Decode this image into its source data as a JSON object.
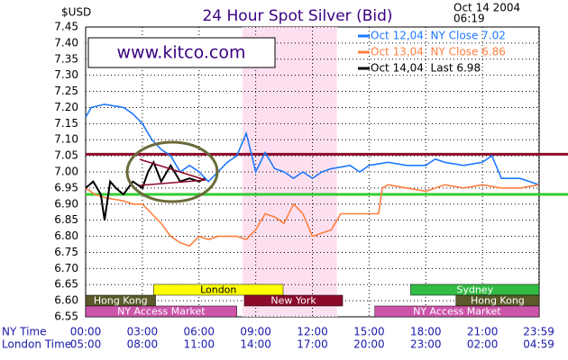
{
  "chart_data": {
    "type": "line",
    "title": "24 Hour Spot Silver (Bid)",
    "y_unit": "$USD",
    "date": "Oct 14 2004",
    "time": "06:19",
    "watermark": "www.kitco.com",
    "x_row_labels": [
      "NY Time",
      "London Time"
    ],
    "xlim": [
      0,
      24
    ],
    "xticks": [
      {
        "value": 0,
        "label": "00:00"
      },
      {
        "value": 3,
        "label": "03:00"
      },
      {
        "value": 6,
        "label": "06:00"
      },
      {
        "value": 9,
        "label": "09:00"
      },
      {
        "value": 12,
        "label": "12:00"
      },
      {
        "value": 15,
        "label": "15:00"
      },
      {
        "value": 18,
        "label": "18:00"
      },
      {
        "value": 21,
        "label": "21:00"
      },
      {
        "value": 23.98,
        "label": "23:59"
      }
    ],
    "london_time_labels": [
      "05:00",
      "08:00",
      "11:00",
      "14:00",
      "17:00",
      "20:00",
      "23:00",
      "02:00",
      "04:59"
    ],
    "ylim": [
      6.55,
      7.45
    ],
    "yticks": [
      7.45,
      {
        "value": 7.4,
        "label": "7.40"
      },
      7.35,
      {
        "value": 7.3,
        "label": "7.30"
      },
      7.25,
      {
        "value": 7.2,
        "label": "7.20"
      },
      7.15,
      {
        "value": 7.1,
        "label": "7.10"
      },
      7.05,
      {
        "value": 7,
        "label": "7.00"
      },
      6.95,
      {
        "value": 6.9,
        "label": "6.90"
      },
      6.85,
      {
        "value": 6.8,
        "label": "6.80"
      },
      6.75,
      {
        "value": 6.7,
        "label": "6.70"
      },
      6.65,
      {
        "value": 6.6,
        "label": "6.60"
      },
      6.55
    ],
    "grid": true,
    "shaded_x": [
      8.3,
      13.3
    ],
    "reference_lines": [
      {
        "value": 7.055,
        "color": "#8b0a2a"
      },
      {
        "value": 6.93,
        "color": "#33cc33"
      }
    ],
    "sessions": [
      {
        "name": "London",
        "start": 3.6,
        "end": 10.45,
        "row": 0,
        "color": "#ffff00"
      },
      {
        "name": "Sydney",
        "start": 17.2,
        "end": 24,
        "row": 0,
        "color": "#33bb44"
      },
      {
        "name": "Hong Kong",
        "start": 0,
        "end": 3.7,
        "row": 1,
        "color": "#5a5a2a"
      },
      {
        "name": "New York",
        "start": 8.4,
        "end": 13.6,
        "row": 1,
        "color": "#8b0a2a"
      },
      {
        "name": "Hong Kong",
        "start": 19.6,
        "end": 24,
        "row": 1,
        "color": "#5a5a2a"
      },
      {
        "name": "NY Access Market",
        "start": 0,
        "end": 8,
        "row": 2,
        "color": "#cc55aa"
      },
      {
        "name": "NY Access Market",
        "start": 15.3,
        "end": 24,
        "row": 2,
        "color": "#cc55aa"
      }
    ],
    "series": [
      {
        "name": "Oct 12,04  NY Close 7.02",
        "color": "#1e78ff",
        "x": [
          0,
          0.3,
          1,
          2,
          2.5,
          3,
          3.5,
          4,
          4.5,
          5,
          5.5,
          6,
          6.5,
          7,
          7.5,
          8,
          8.5,
          8.8,
          9,
          9.5,
          10,
          10.5,
          11,
          11.5,
          12,
          12.5,
          13,
          14,
          14.5,
          15,
          16,
          17,
          18,
          18.5,
          19,
          20,
          21,
          21.5,
          22,
          23,
          23.98
        ],
        "values": [
          7.17,
          7.2,
          7.21,
          7.2,
          7.18,
          7.15,
          7.1,
          7.07,
          7.05,
          7.0,
          7.02,
          7.0,
          6.97,
          7.0,
          7.03,
          7.05,
          7.12,
          7.05,
          7.0,
          7.06,
          7.01,
          7.0,
          6.98,
          7.0,
          6.98,
          7.0,
          7.01,
          7.02,
          7.0,
          7.02,
          7.03,
          7.02,
          7.02,
          7.04,
          7.03,
          7.02,
          7.03,
          7.05,
          6.98,
          6.98,
          6.96
        ]
      },
      {
        "name": "Oct 13,04  NY Close 6.86",
        "color": "#ff8040",
        "x": [
          0,
          0.5,
          1,
          2,
          2.5,
          3,
          3.5,
          4,
          4.5,
          5,
          5.5,
          6,
          6.5,
          7,
          8,
          8.5,
          9,
          9.5,
          10,
          10.5,
          11,
          11.5,
          12,
          12.5,
          13,
          13.5,
          15,
          15.5,
          15.7,
          16,
          17,
          18,
          19,
          20,
          21,
          22,
          23,
          23.98
        ],
        "values": [
          6.95,
          6.93,
          6.92,
          6.91,
          6.9,
          6.9,
          6.87,
          6.84,
          6.8,
          6.78,
          6.77,
          6.8,
          6.79,
          6.8,
          6.8,
          6.79,
          6.82,
          6.87,
          6.86,
          6.84,
          6.9,
          6.87,
          6.8,
          6.81,
          6.82,
          6.87,
          6.87,
          6.87,
          6.95,
          6.96,
          6.95,
          6.94,
          6.96,
          6.95,
          6.96,
          6.95,
          6.95,
          6.96
        ]
      },
      {
        "name": "Oct 14,04  Last 6.98",
        "color": "#000000",
        "x": [
          0,
          0.4,
          0.8,
          1,
          1.3,
          1.6,
          2,
          2.5,
          3,
          3.3,
          3.6,
          4,
          4.5,
          5,
          5.5,
          6,
          6.3
        ],
        "values": [
          6.95,
          6.97,
          6.93,
          6.85,
          6.97,
          6.95,
          6.93,
          6.97,
          6.95,
          7.0,
          7.03,
          6.97,
          7.02,
          6.97,
          6.98,
          6.97,
          6.98
        ]
      }
    ]
  }
}
